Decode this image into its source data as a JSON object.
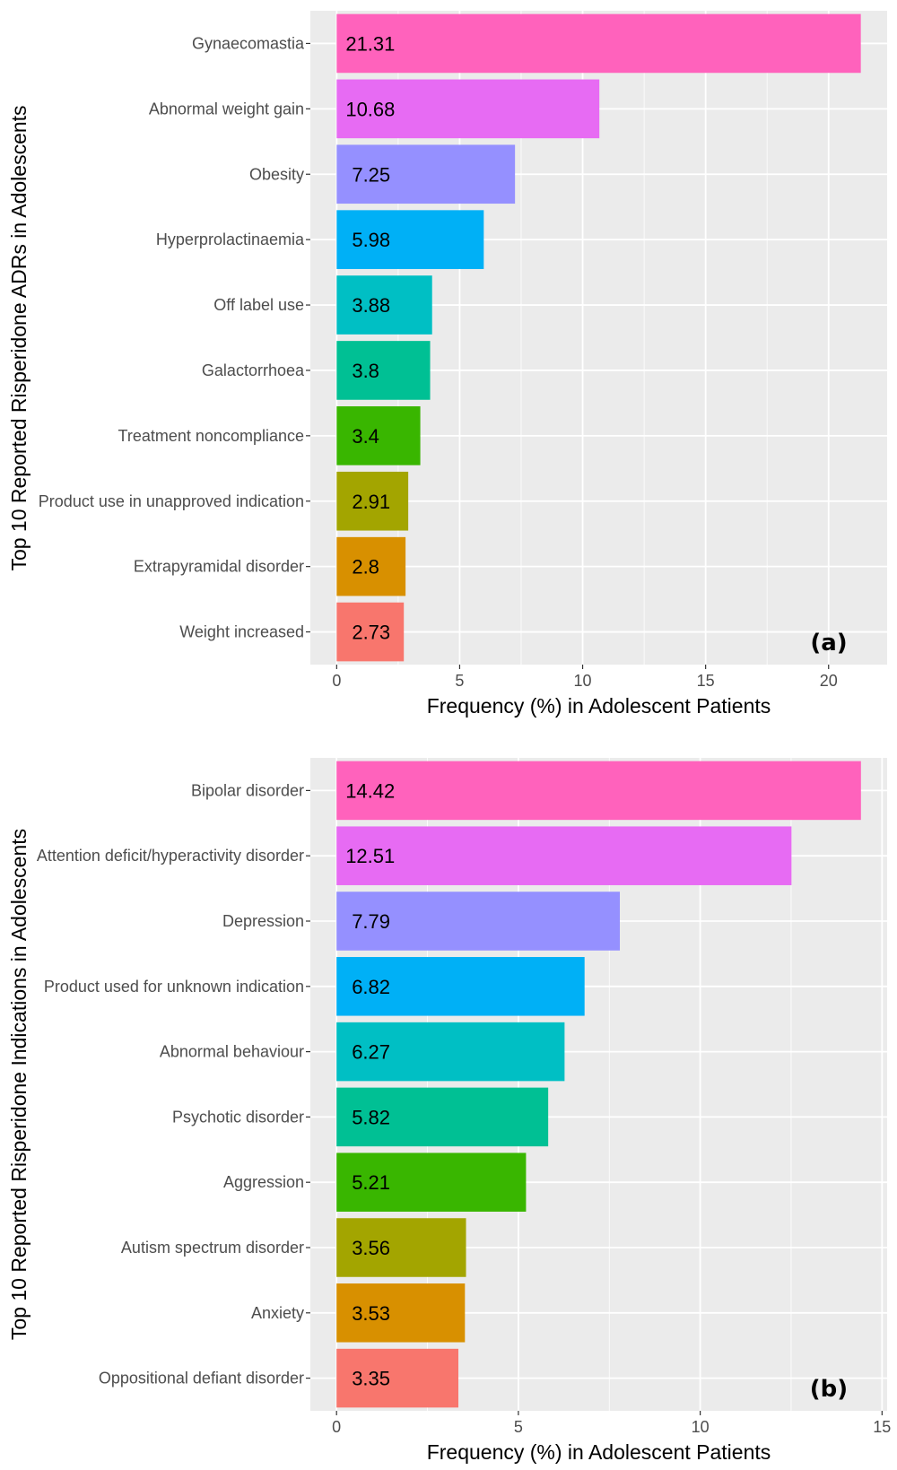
{
  "chart_data": [
    {
      "type": "bar",
      "orientation": "horizontal",
      "panel_label": "(a)",
      "xlabel": "Frequency (%) in Adolescent Patients",
      "ylabel": "Top 10 Reported Risperidone ADRs in Adolescents",
      "xlim": [
        -1.07,
        22.38
      ],
      "xticks": [
        0,
        5,
        10,
        15,
        20
      ],
      "grid": true,
      "categories": [
        "Gynaecomastia",
        "Abnormal weight gain",
        "Obesity",
        "Hyperprolactinaemia",
        "Off label use",
        "Galactorrhoea",
        "Treatment noncompliance",
        "Product use in unapproved indication",
        "Extrapyramidal disorder",
        "Weight increased"
      ],
      "values": [
        21.31,
        10.68,
        7.25,
        5.98,
        3.88,
        3.8,
        3.4,
        2.91,
        2.8,
        2.73
      ],
      "data_labels": [
        "21.31",
        "10.68",
        "7.25",
        "5.98",
        "3.88",
        "3.8",
        "3.4",
        "2.91",
        "2.8",
        "2.73"
      ],
      "colors": [
        "#FF62BC",
        "#E76BF3",
        "#9590FF",
        "#00B0F6",
        "#00BFC4",
        "#00C094",
        "#39B600",
        "#A3A500",
        "#D89000",
        "#F8766D"
      ]
    },
    {
      "type": "bar",
      "orientation": "horizontal",
      "panel_label": "(b)",
      "xlabel": "Frequency (%) in Adolescent Patients",
      "ylabel": "Top 10 Reported Risperidone Indications in Adolescents",
      "xlim": [
        -0.72,
        15.14
      ],
      "xticks": [
        0,
        5,
        10,
        15
      ],
      "grid": true,
      "categories": [
        "Bipolar disorder",
        "Attention deficit/hyperactivity disorder",
        "Depression",
        "Product used for unknown indication",
        "Abnormal behaviour",
        "Psychotic disorder",
        "Aggression",
        "Autism spectrum disorder",
        "Anxiety",
        "Oppositional defiant disorder"
      ],
      "values": [
        14.42,
        12.51,
        7.79,
        6.82,
        6.27,
        5.82,
        5.21,
        3.56,
        3.53,
        3.35
      ],
      "data_labels": [
        "14.42",
        "12.51",
        "7.79",
        "6.82",
        "6.27",
        "5.82",
        "5.21",
        "3.56",
        "3.53",
        "3.35"
      ],
      "colors": [
        "#FF62BC",
        "#E76BF3",
        "#9590FF",
        "#00B0F6",
        "#00BFC4",
        "#00C094",
        "#39B600",
        "#A3A500",
        "#D89000",
        "#F8766D"
      ]
    }
  ]
}
